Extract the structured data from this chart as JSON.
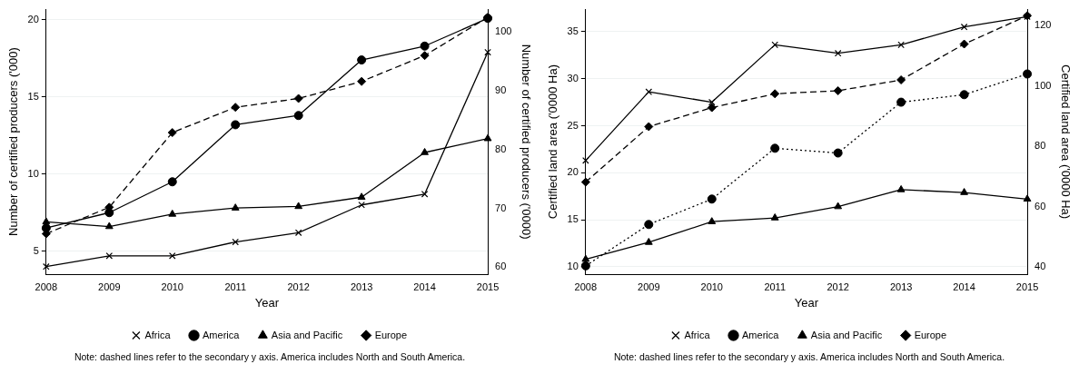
{
  "chart_data": [
    {
      "type": "line",
      "xlabel": "Year",
      "ylabel": "Number of certified producers ('000)",
      "y2label": "Number of certified producers ('0000)",
      "categories": [
        "2008",
        "2009",
        "2010",
        "2011",
        "2012",
        "2013",
        "2014",
        "2015"
      ],
      "series": [
        {
          "name": "Africa",
          "color": "#000000",
          "marker": "cross",
          "line_style": "solid",
          "values": [
            4.0,
            4.7,
            4.7,
            5.6,
            6.2,
            8.0,
            8.7,
            17.9
          ]
        },
        {
          "name": "America",
          "color": "#000000",
          "marker": "circle",
          "line_style": "solid",
          "values": [
            6.5,
            7.5,
            9.5,
            13.2,
            13.8,
            17.4,
            18.3,
            20.1
          ]
        },
        {
          "name": "Asia and Pacific",
          "color": "#000000",
          "marker": "triangle",
          "line_style": "solid",
          "values": [
            6.9,
            6.6,
            7.4,
            7.8,
            7.9,
            8.5,
            11.4,
            12.3
          ]
        },
        {
          "name": "Europe",
          "color": "#000000",
          "marker": "diamond",
          "line_style": "dashed",
          "axis": "y2",
          "values": [
            65.7,
            70.2,
            82.9,
            87.2,
            88.7,
            91.6,
            96.0,
            102.5
          ]
        }
      ],
      "ylim": [
        3.5,
        20.7
      ],
      "yticks": [
        5,
        10,
        15,
        20
      ],
      "y2lim": [
        58.8,
        103.9
      ],
      "y2ticks": [
        60,
        70,
        80,
        90,
        100
      ],
      "grid": "y",
      "legend": "bottom",
      "annotations": [
        "Note: dashed lines refer to the secondary y axis. America includes North and South America."
      ]
    },
    {
      "type": "line",
      "xlabel": "Year",
      "ylabel": "Certified land area ('0000 Ha)",
      "y2label": "Certified land area ('0000 Ha)",
      "categories": [
        "2008",
        "2009",
        "2010",
        "2011",
        "2012",
        "2013",
        "2014",
        "2015"
      ],
      "series": [
        {
          "name": "Africa",
          "color": "#000000",
          "marker": "cross",
          "line_style": "solid",
          "values": [
            21.3,
            28.6,
            27.5,
            33.6,
            32.7,
            33.6,
            35.5,
            36.6
          ]
        },
        {
          "name": "America",
          "color": "#000000",
          "marker": "circle",
          "line_style": "dotted",
          "values": [
            10.1,
            14.5,
            17.2,
            22.6,
            22.1,
            27.5,
            28.3,
            30.5
          ]
        },
        {
          "name": "Asia and Pacific",
          "color": "#000000",
          "marker": "triangle",
          "line_style": "solid",
          "values": [
            10.8,
            12.6,
            14.8,
            15.2,
            16.4,
            18.2,
            17.9,
            17.2
          ]
        },
        {
          "name": "Europe",
          "color": "#000000",
          "marker": "diamond",
          "line_style": "dashed",
          "axis": "y2",
          "values": [
            68.1,
            86.5,
            92.8,
            97.4,
            98.4,
            102.0,
            113.9,
            123.3
          ]
        }
      ],
      "ylim": [
        9.2,
        37.4
      ],
      "yticks": [
        10,
        15,
        20,
        25,
        30,
        35
      ],
      "y2lim": [
        37.5,
        125.5
      ],
      "y2ticks": [
        40,
        60,
        80,
        100,
        120
      ],
      "grid": "y",
      "legend": "bottom",
      "annotations": [
        "Note: dashed lines refer to the secondary y axis. America includes North and South America."
      ]
    }
  ]
}
